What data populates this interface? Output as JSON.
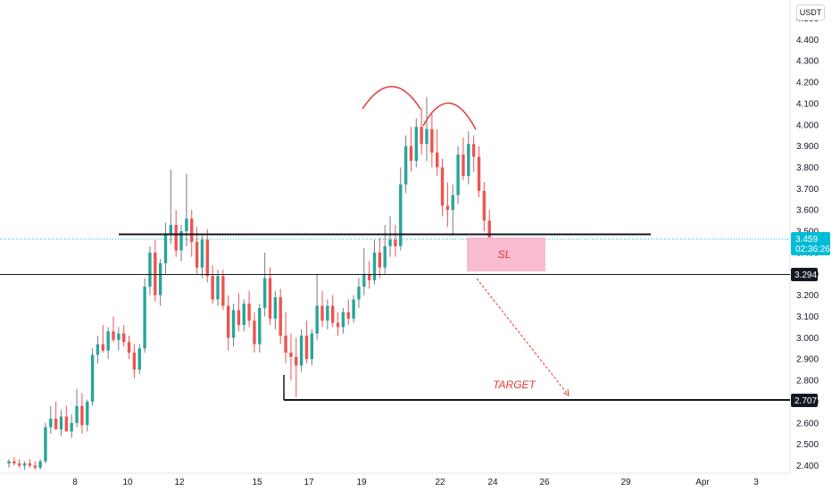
{
  "currency_button": "USDT",
  "colors": {
    "up": "#26a69a",
    "down": "#ef5350",
    "up_wick": "#787b86",
    "annotation_red": "#e53935",
    "sl_box": "#f8bbd0",
    "sl_text": "#e53935",
    "price_line": "#00bcd4",
    "level_tag": "#131722"
  },
  "chart_data": {
    "type": "candlestick",
    "x_tick_labels": [
      "8",
      "10",
      "12",
      "15",
      "17",
      "19",
      "22",
      "24",
      "26",
      "29",
      "Apr",
      "3"
    ],
    "y_tick_labels": [
      "2.400",
      "2.500",
      "2.600",
      "2.700",
      "2.800",
      "2.900",
      "3.000",
      "3.100",
      "3.200",
      "3.300",
      "3.400",
      "3.500",
      "3.600",
      "3.700",
      "3.800",
      "3.900",
      "4.000",
      "4.100",
      "4.200",
      "4.300",
      "4.400",
      "4.500"
    ],
    "ylim": [
      2.35,
      4.55
    ],
    "candles_approx": [
      [
        2.41,
        2.43,
        2.39,
        2.42
      ],
      [
        2.42,
        2.44,
        2.4,
        2.41
      ],
      [
        2.41,
        2.43,
        2.39,
        2.4
      ],
      [
        2.4,
        2.42,
        2.38,
        2.41
      ],
      [
        2.41,
        2.43,
        2.39,
        2.4
      ],
      [
        2.4,
        2.42,
        2.38,
        2.39
      ],
      [
        2.39,
        2.43,
        2.38,
        2.42
      ],
      [
        2.42,
        2.6,
        2.41,
        2.58
      ],
      [
        2.58,
        2.68,
        2.55,
        2.62
      ],
      [
        2.62,
        2.7,
        2.58,
        2.57
      ],
      [
        2.57,
        2.66,
        2.54,
        2.63
      ],
      [
        2.63,
        2.68,
        2.58,
        2.56
      ],
      [
        2.56,
        2.64,
        2.53,
        2.6
      ],
      [
        2.6,
        2.76,
        2.58,
        2.68
      ],
      [
        2.68,
        2.74,
        2.55,
        2.59
      ],
      [
        2.59,
        2.71,
        2.56,
        2.7
      ],
      [
        2.7,
        2.95,
        2.68,
        2.92
      ],
      [
        2.92,
        3.01,
        2.88,
        2.97
      ],
      [
        2.97,
        3.06,
        2.93,
        2.94
      ],
      [
        2.94,
        3.05,
        2.9,
        3.03
      ],
      [
        3.03,
        3.1,
        2.98,
        2.99
      ],
      [
        2.99,
        3.05,
        2.94,
        3.02
      ],
      [
        3.02,
        3.06,
        2.96,
        2.98
      ],
      [
        2.98,
        3.01,
        2.9,
        2.93
      ],
      [
        2.93,
        2.97,
        2.81,
        2.85
      ],
      [
        2.85,
        2.97,
        2.83,
        2.95
      ],
      [
        2.95,
        3.28,
        2.93,
        3.24
      ],
      [
        3.24,
        3.43,
        3.2,
        3.4
      ],
      [
        3.4,
        3.46,
        3.17,
        3.2
      ],
      [
        3.2,
        3.37,
        3.15,
        3.35
      ],
      [
        3.35,
        3.54,
        3.3,
        3.49
      ],
      [
        3.49,
        3.79,
        3.44,
        3.53
      ],
      [
        3.53,
        3.6,
        3.38,
        3.41
      ],
      [
        3.41,
        3.53,
        3.36,
        3.5
      ],
      [
        3.5,
        3.77,
        3.43,
        3.56
      ],
      [
        3.56,
        3.6,
        3.38,
        3.45
      ],
      [
        3.45,
        3.52,
        3.3,
        3.33
      ],
      [
        3.33,
        3.49,
        3.28,
        3.46
      ],
      [
        3.46,
        3.51,
        3.26,
        3.29
      ],
      [
        3.29,
        3.34,
        3.16,
        3.18
      ],
      [
        3.18,
        3.32,
        3.15,
        3.29
      ],
      [
        3.29,
        3.32,
        3.13,
        3.15
      ],
      [
        3.15,
        3.2,
        2.94,
        3.0
      ],
      [
        3.0,
        3.16,
        2.96,
        3.13
      ],
      [
        3.13,
        3.21,
        3.03,
        3.06
      ],
      [
        3.06,
        3.18,
        3.03,
        3.16
      ],
      [
        3.16,
        3.22,
        3.05,
        3.08
      ],
      [
        3.08,
        3.12,
        2.93,
        2.97
      ],
      [
        2.97,
        3.16,
        2.93,
        3.14
      ],
      [
        3.14,
        3.4,
        3.1,
        3.28
      ],
      [
        3.28,
        3.33,
        3.06,
        3.09
      ],
      [
        3.09,
        3.22,
        3.04,
        3.19
      ],
      [
        3.19,
        3.23,
        2.97,
        3.01
      ],
      [
        3.01,
        3.12,
        2.88,
        2.93
      ],
      [
        2.93,
        3.02,
        2.8,
        2.91
      ],
      [
        2.91,
        3.0,
        2.72,
        2.87
      ],
      [
        2.87,
        3.04,
        2.84,
        3.01
      ],
      [
        3.01,
        3.08,
        2.88,
        2.9
      ],
      [
        2.9,
        3.04,
        2.87,
        3.02
      ],
      [
        3.02,
        3.3,
        2.99,
        3.15
      ],
      [
        3.15,
        3.22,
        3.05,
        3.08
      ],
      [
        3.08,
        3.18,
        3.04,
        3.15
      ],
      [
        3.15,
        3.2,
        3.05,
        3.07
      ],
      [
        3.07,
        3.12,
        3.01,
        3.05
      ],
      [
        3.05,
        3.14,
        3.02,
        3.12
      ],
      [
        3.12,
        3.18,
        3.06,
        3.09
      ],
      [
        3.09,
        3.2,
        3.07,
        3.18
      ],
      [
        3.18,
        3.28,
        3.14,
        3.24
      ],
      [
        3.24,
        3.42,
        3.2,
        3.3
      ],
      [
        3.3,
        3.36,
        3.23,
        3.27
      ],
      [
        3.27,
        3.46,
        3.25,
        3.4
      ],
      [
        3.4,
        3.47,
        3.28,
        3.33
      ],
      [
        3.33,
        3.53,
        3.3,
        3.43
      ],
      [
        3.43,
        3.57,
        3.38,
        3.46
      ],
      [
        3.46,
        3.53,
        3.38,
        3.43
      ],
      [
        3.43,
        3.8,
        3.41,
        3.72
      ],
      [
        3.72,
        3.95,
        3.68,
        3.9
      ],
      [
        3.9,
        3.99,
        3.78,
        3.83
      ],
      [
        3.83,
        4.03,
        3.8,
        3.99
      ],
      [
        3.99,
        4.08,
        3.86,
        3.91
      ],
      [
        3.91,
        4.13,
        3.83,
        3.98
      ],
      [
        3.98,
        4.05,
        3.8,
        3.87
      ],
      [
        3.87,
        3.98,
        3.76,
        3.8
      ],
      [
        3.8,
        3.84,
        3.57,
        3.62
      ],
      [
        3.62,
        3.73,
        3.52,
        3.6
      ],
      [
        3.6,
        3.72,
        3.48,
        3.67
      ],
      [
        3.67,
        3.9,
        3.63,
        3.86
      ],
      [
        3.86,
        3.94,
        3.74,
        3.76
      ],
      [
        3.76,
        3.97,
        3.72,
        3.91
      ],
      [
        3.91,
        3.95,
        3.78,
        3.85
      ],
      [
        3.85,
        3.9,
        3.66,
        3.69
      ],
      [
        3.69,
        3.73,
        3.5,
        3.55
      ],
      [
        3.55,
        3.6,
        3.42,
        3.46
      ]
    ],
    "horizontal_levels": [
      3.497,
      3.294,
      2.707
    ],
    "level_tags": {
      "upper_support": "3.294",
      "target_level": "2.707"
    },
    "current_price": "3.459",
    "countdown": "02:36:26",
    "annotations": {
      "stop_loss": "SL",
      "target": "TARGET"
    },
    "grid": false
  }
}
